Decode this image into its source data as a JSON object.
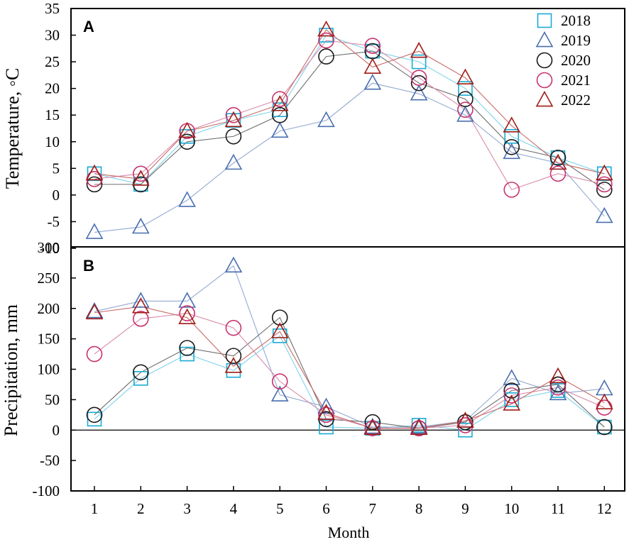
{
  "chart_data": [
    {
      "panel": "A",
      "type": "line",
      "ylabel": "Temperature, ◦C",
      "ylim": [
        -10,
        35
      ],
      "yticks": [
        -10,
        -5,
        0,
        5,
        10,
        15,
        20,
        25,
        30,
        35
      ],
      "ytick_labels": [
        "-10",
        "-5",
        "0",
        "5",
        "10",
        "15",
        "20",
        "25",
        "30",
        "35"
      ],
      "categories": [
        1,
        2,
        3,
        4,
        5,
        6,
        7,
        8,
        9,
        10,
        11,
        12
      ],
      "legend_position": "top-right",
      "series": [
        {
          "name": "2018",
          "marker": "square",
          "color": "#1AABD3",
          "line_color": "#7FD3EA",
          "values": [
            4,
            2,
            11,
            14,
            16,
            30,
            27,
            25,
            20,
            11,
            7,
            4
          ]
        },
        {
          "name": "2019",
          "marker": "triangle",
          "color": "#4A6FB0",
          "line_color": "#93A9D2",
          "values": [
            -7,
            -6,
            -1,
            6,
            12,
            14,
            21,
            19,
            15,
            8,
            6,
            -4
          ]
        },
        {
          "name": "2020",
          "marker": "circle",
          "color": "#1A1A1A",
          "line_color": "#6E6E6E",
          "values": [
            2,
            2,
            10,
            11,
            15,
            26,
            27,
            21,
            18,
            9,
            7,
            1
          ]
        },
        {
          "name": "2021",
          "marker": "circle",
          "color": "#C8326F",
          "line_color": "#D98AAA",
          "values": [
            3,
            4,
            12,
            15,
            18,
            29,
            28,
            22,
            16,
            1,
            4,
            2
          ]
        },
        {
          "name": "2022",
          "marker": "triangle",
          "color": "#A01B16",
          "line_color": "#C56A66",
          "values": [
            4,
            3,
            12,
            14,
            17,
            31,
            24,
            27,
            22,
            13,
            6,
            4
          ]
        }
      ]
    },
    {
      "panel": "B",
      "type": "line",
      "ylabel": "Precipitation, mm",
      "xlabel": "Month",
      "ylim": [
        -100,
        300
      ],
      "yticks": [
        -100,
        -50,
        0,
        50,
        100,
        150,
        200,
        250,
        300
      ],
      "ytick_labels": [
        "-100",
        "-50",
        "0",
        "50",
        "100",
        "150",
        "200",
        "250",
        "300"
      ],
      "categories": [
        1,
        2,
        3,
        4,
        5,
        6,
        7,
        8,
        9,
        10,
        11,
        12
      ],
      "xtick_labels": [
        "1",
        "2",
        "3",
        "4",
        "5",
        "6",
        "7",
        "8",
        "9",
        "10",
        "11",
        "12"
      ],
      "series": [
        {
          "name": "2018",
          "marker": "square",
          "color": "#1AABD3",
          "line_color": "#7FD3EA",
          "values": [
            18,
            85,
            125,
            98,
            155,
            5,
            3,
            8,
            0,
            50,
            65,
            5
          ]
        },
        {
          "name": "2019",
          "marker": "triangle",
          "color": "#4A6FB0",
          "line_color": "#93A9D2",
          "values": [
            195,
            212,
            212,
            270,
            58,
            38,
            5,
            5,
            15,
            85,
            60,
            68
          ]
        },
        {
          "name": "2020",
          "marker": "circle",
          "color": "#1A1A1A",
          "line_color": "#6E6E6E",
          "values": [
            25,
            95,
            135,
            122,
            185,
            18,
            13,
            3,
            13,
            65,
            75,
            5
          ]
        },
        {
          "name": "2021",
          "marker": "circle",
          "color": "#C8326F",
          "line_color": "#D98AAA",
          "values": [
            125,
            183,
            192,
            168,
            80,
            25,
            3,
            3,
            8,
            57,
            70,
            37
          ]
        },
        {
          "name": "2022",
          "marker": "triangle",
          "color": "#A01B16",
          "line_color": "#C56A66",
          "values": [
            193,
            203,
            185,
            105,
            162,
            28,
            3,
            3,
            15,
            43,
            88,
            45
          ]
        }
      ]
    }
  ]
}
